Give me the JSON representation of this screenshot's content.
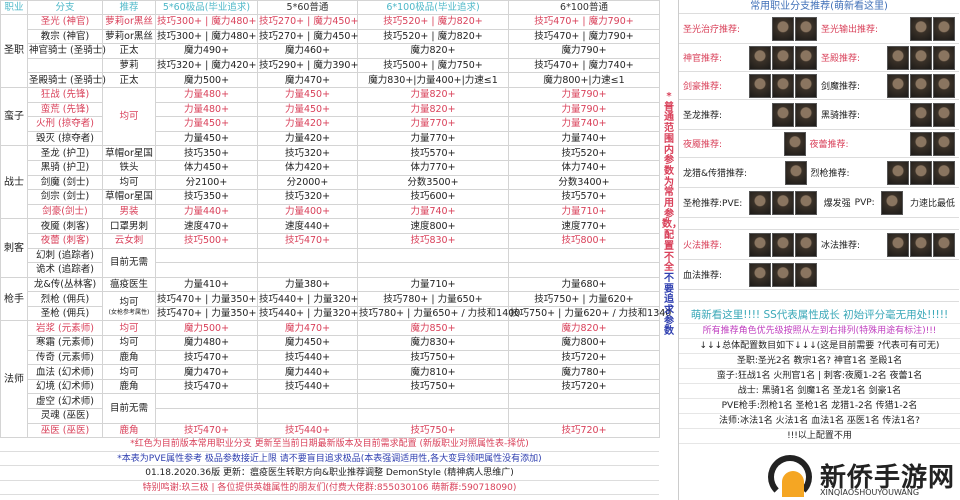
{
  "header": [
    "职业",
    "分支",
    "推荐",
    "5*60极品(毕业追求)",
    "5*60普通",
    "6*100极品(毕业追求)",
    "6*100普通"
  ],
  "groups": [
    {
      "job": "圣职",
      "rows": [
        {
          "branch": "圣光 (神官)",
          "red": true,
          "rec": "萝莉or黑丝",
          "v": [
            "技巧300+ | 魔力480+",
            "技巧270+ | 魔力450+",
            "技巧520+ | 魔力820+",
            "技巧470+ | 魔力790+"
          ]
        },
        {
          "branch": "教宗 (神官)",
          "rec": "萝莉or黑丝",
          "v": [
            "技巧300+ | 魔力480+",
            "技巧270+ | 魔力450+",
            "技巧520+ | 魔力820+",
            "技巧470+ | 魔力790+"
          ]
        },
        {
          "branch": "神官骑士 (圣骑士)",
          "rec": "正太",
          "v": [
            "魔力490+",
            "魔力460+",
            "魔力820+",
            "魔力790+"
          ]
        },
        {
          "branch": "",
          "rec": "萝莉",
          "v": [
            "技巧320+ | 魔力420+",
            "技巧290+ | 魔力390+",
            "技巧500+ | 魔力750+",
            "技巧470+ | 魔力740+"
          ]
        },
        {
          "branch": "圣殿骑士 (圣骑士)",
          "rec": "正太",
          "v": [
            "魔力500+",
            "魔力470+",
            "魔力830+|力量400+|力速≤1",
            "魔力800+|力速≤1"
          ]
        }
      ]
    },
    {
      "job": "蛮子",
      "rows": [
        {
          "branch": "狂战 (先锋)",
          "red": true,
          "rec": "均可",
          "recspan": 4,
          "recred": true,
          "v": [
            "力量480+",
            "力量450+",
            "力量820+",
            "力量790+"
          ]
        },
        {
          "branch": "蛮荒 (先锋)",
          "red": true,
          "v": [
            "力量480+",
            "力量450+",
            "力量820+",
            "力量790+"
          ]
        },
        {
          "branch": "火刑 (掠夺者)",
          "red": true,
          "v": [
            "力量450+",
            "力量420+",
            "力量770+",
            "力量740+"
          ]
        },
        {
          "branch": "毁灭 (掠夺者)",
          "v": [
            "力量450+",
            "力量420+",
            "力量770+",
            "力量740+"
          ]
        }
      ]
    },
    {
      "job": "战士",
      "rows": [
        {
          "branch": "圣龙 (护卫)",
          "rec": "草帽or星国",
          "v": [
            "技巧350+",
            "技巧320+",
            "技巧570+",
            "技巧520+"
          ]
        },
        {
          "branch": "黑骑 (护卫)",
          "rec": "铁头",
          "v": [
            "体力450+",
            "体力420+",
            "体力770+",
            "体力740+"
          ]
        },
        {
          "branch": "剑魔 (剑士)",
          "rec": "均可",
          "v": [
            "分2100+",
            "分2000+",
            "分数3500+",
            "分数3400+"
          ]
        },
        {
          "branch": "剑宗 (剑士)",
          "rec": "草帽or星国",
          "v": [
            "技巧350+",
            "技巧320+",
            "技巧600+",
            "技巧570+"
          ]
        },
        {
          "branch": "剑豪(剑士)",
          "red": true,
          "rec": "男装",
          "v": [
            "力量440+",
            "力量400+",
            "力量740+",
            "力量710+"
          ]
        }
      ]
    },
    {
      "job": "刺客",
      "rows": [
        {
          "branch": "夜魇 (刺客)",
          "rec": "口罩男刺",
          "v": [
            "速度470+",
            "速度440+",
            "速度800+",
            "速度770+"
          ]
        },
        {
          "branch": "夜蕾 (刺客)",
          "red": true,
          "rec": "云女刺",
          "v": [
            "技巧500+",
            "技巧470+",
            "技巧830+",
            "技巧800+"
          ]
        },
        {
          "branch": "幻刺 (追踪者)",
          "rec": "目前无需",
          "recspan": 2,
          "v": [
            "",
            "",
            "",
            ""
          ]
        },
        {
          "branch": "诡术 (追踪者)",
          "v": [
            "",
            "",
            "",
            ""
          ]
        }
      ]
    },
    {
      "job": "枪手",
      "rows": [
        {
          "branch": "龙&传(丛林客)",
          "rec": "瘟疫医生",
          "v": [
            "力量410+",
            "力量380+",
            "力量710+",
            "力量680+"
          ]
        },
        {
          "branch": "烈枪 (佣兵)",
          "rec": "均可",
          "recsub": "(女枪参考属性)",
          "recspan": 2,
          "v": [
            "技巧470+ | 力量350+",
            "技巧440+ | 力量320+",
            "技巧780+ | 力量650+",
            "技巧750+ | 力量620+"
          ]
        },
        {
          "branch": "圣枪 (佣兵)",
          "v": [
            "技巧470+ | 力量350+",
            "技巧440+ | 力量320+",
            "技巧780+ | 力量650+ / 力技和1400",
            "技巧750+ | 力量620+ / 力技和1340"
          ]
        }
      ]
    },
    {
      "job": "法师",
      "rows": [
        {
          "branch": "岩浆 (元素师)",
          "red": true,
          "rec": "均可",
          "v": [
            "魔力500+",
            "魔力470+",
            "魔力850+",
            "魔力820+"
          ]
        },
        {
          "branch": "寒霜 (元素师)",
          "rec": "均可",
          "v": [
            "魔力480+",
            "魔力450+",
            "魔力830+",
            "魔力800+"
          ]
        },
        {
          "branch": "传奇 (元素师)",
          "rec": "鹿角",
          "v": [
            "技巧470+",
            "技巧440+",
            "技巧750+",
            "技巧720+"
          ]
        },
        {
          "branch": "血法 (幻术师)",
          "rec": "均可",
          "v": [
            "魔力470+",
            "魔力440+",
            "魔力810+",
            "魔力780+"
          ]
        },
        {
          "branch": "幻境 (幻术师)",
          "rec": "鹿角",
          "v": [
            "技巧470+",
            "技巧440+",
            "技巧750+",
            "技巧720+"
          ]
        },
        {
          "branch": "虚空 (幻术师)",
          "rec": "目前无需",
          "recspan": 2,
          "v": [
            "",
            "",
            "",
            ""
          ]
        },
        {
          "branch": "灵魂 (巫医)",
          "v": [
            "",
            "",
            "",
            ""
          ]
        },
        {
          "branch": "巫医 (巫医)",
          "red": true,
          "rec": "鹿角",
          "v": [
            "技巧470+",
            "技巧440+",
            "技巧750+",
            "技巧720+"
          ]
        }
      ]
    }
  ],
  "vertical_note": {
    "red": "*普通范围内参数为常用参数，配置不全",
    "blue": "不要追求参数"
  },
  "notes": [
    {
      "text": "*红色为目前版本常用职业分支 更新至当前日期最新版本及目前需求配置   (新版职业对照属性表-择优)",
      "color": "red"
    },
    {
      "text": "*本表为PVE属性参考 极品参数接近上限 请不要盲目追求极品(本表强调适用性,各大变异领吧属性没有添加)",
      "color": "blue"
    },
    {
      "text": "01.18.2020.36版 更新：瘟疫医生转职方向&职业推荐调整 DemonStyle (精神病人思维广)",
      "color": "dark"
    },
    {
      "text": "特别鸣谢:玖三极 | 各位提供英雄属性的朋友们(付费大佬群:855030106   萌新群:590718090)",
      "color": "red"
    }
  ],
  "right": {
    "title": "常用职业分支推荐(萌新看这里)",
    "rows": [
      [
        {
          "label": "圣光治疗推荐:",
          "red": true,
          "pics": 2
        },
        {
          "label": "圣光输出推荐:",
          "red": true,
          "pics": 2
        }
      ],
      [
        {
          "label": "神官推荐:",
          "red": true,
          "pics": 3
        },
        {
          "label": "圣殿推荐:",
          "red": true,
          "pics": 3
        }
      ],
      [
        {
          "label": "剑豪推荐:",
          "red": true,
          "pics": 3
        },
        {
          "label": "剑魔推荐:",
          "pics": 3
        }
      ],
      [
        {
          "label": "圣龙推荐:",
          "pics": 2
        },
        {
          "label": "黑骑推荐:",
          "pics": 2
        }
      ],
      [
        {
          "label": "夜魇推荐:",
          "red": true,
          "pics": 1
        },
        {
          "label": "夜蕾推荐:",
          "red": true,
          "pics": 2
        }
      ],
      [
        {
          "label": "龙猎&传猎推荐:",
          "pics": 1
        },
        {
          "label": "烈枪推荐:",
          "pics": 3
        }
      ],
      [
        {
          "label": "圣枪推荐:PVE:",
          "pics": 3,
          "after": "爆发强"
        },
        {
          "label": "PVP:",
          "pics": 1,
          "after": "力速比最低"
        }
      ],
      [],
      [
        {
          "label": "火法推荐:",
          "red": true,
          "pics": 3
        },
        {
          "label": "冰法推荐:",
          "pics": 3
        }
      ],
      [
        {
          "label": "血法推荐:",
          "pics": 3
        }
      ],
      []
    ],
    "text": [
      {
        "text": "萌新看这里!!!!  SS代表属性成长 初始评分毫无用处!!!!!",
        "color": "#3aa8b8",
        "big": true
      },
      {
        "text": "所有推荐角色优先级按照从左到右排列(特殊用途有标注)!!!",
        "color": "#c040c0"
      },
      {
        "text": "↓↓↓总体配置数目如下↓↓↓(这是目前需要 ?代表可有可无)",
        "color": "#222"
      },
      {
        "text": "圣职:圣光2名 教宗1名? 神官1名 圣殿1名",
        "color": "#222"
      },
      {
        "text": "蛮子:狂战1名 火刑官1名 | 刺客:夜魇1-2名 夜蕾1名",
        "color": "#222"
      },
      {
        "text": "战士: 黑骑1名 剑魔1名 圣龙1名 剑豪1名",
        "color": "#222"
      },
      {
        "text": "PVE枪手:烈枪1名 圣枪1名 龙猎1-2名 传猎1-2名",
        "color": "#222"
      },
      {
        "text": "法师:冰法1名 火法1名 血法1名 巫医1名 传法1名?",
        "color": "#222"
      },
      {
        "text": "!!!以上配置不用",
        "color": "#222"
      }
    ]
  },
  "watermark": {
    "cn": "新侨手游网",
    "en": "XINQIAOSHOUYOUWANG"
  },
  "colors": {
    "red": "#d9415a",
    "blue": "#3040b0",
    "teal": "#4fb8c8"
  }
}
